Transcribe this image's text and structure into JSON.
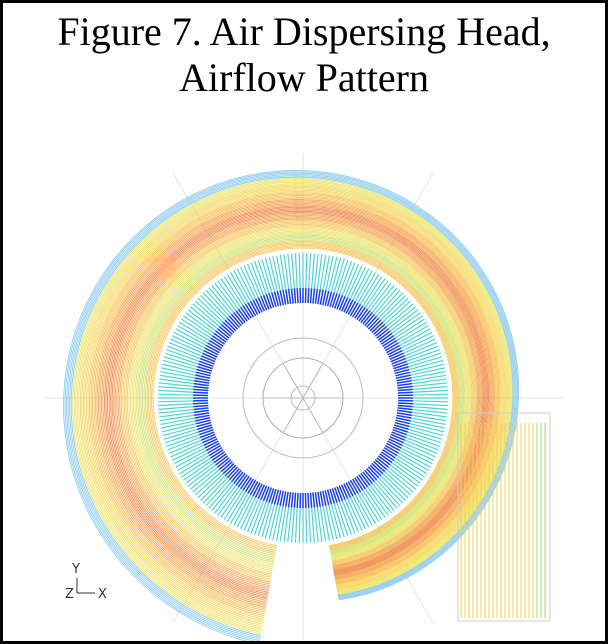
{
  "title": {
    "line1": "Figure 7. Air Dispersing Head,",
    "line2": "Airflow Pattern"
  },
  "axes": {
    "y": "Y",
    "z": "Z",
    "x": "X"
  }
}
